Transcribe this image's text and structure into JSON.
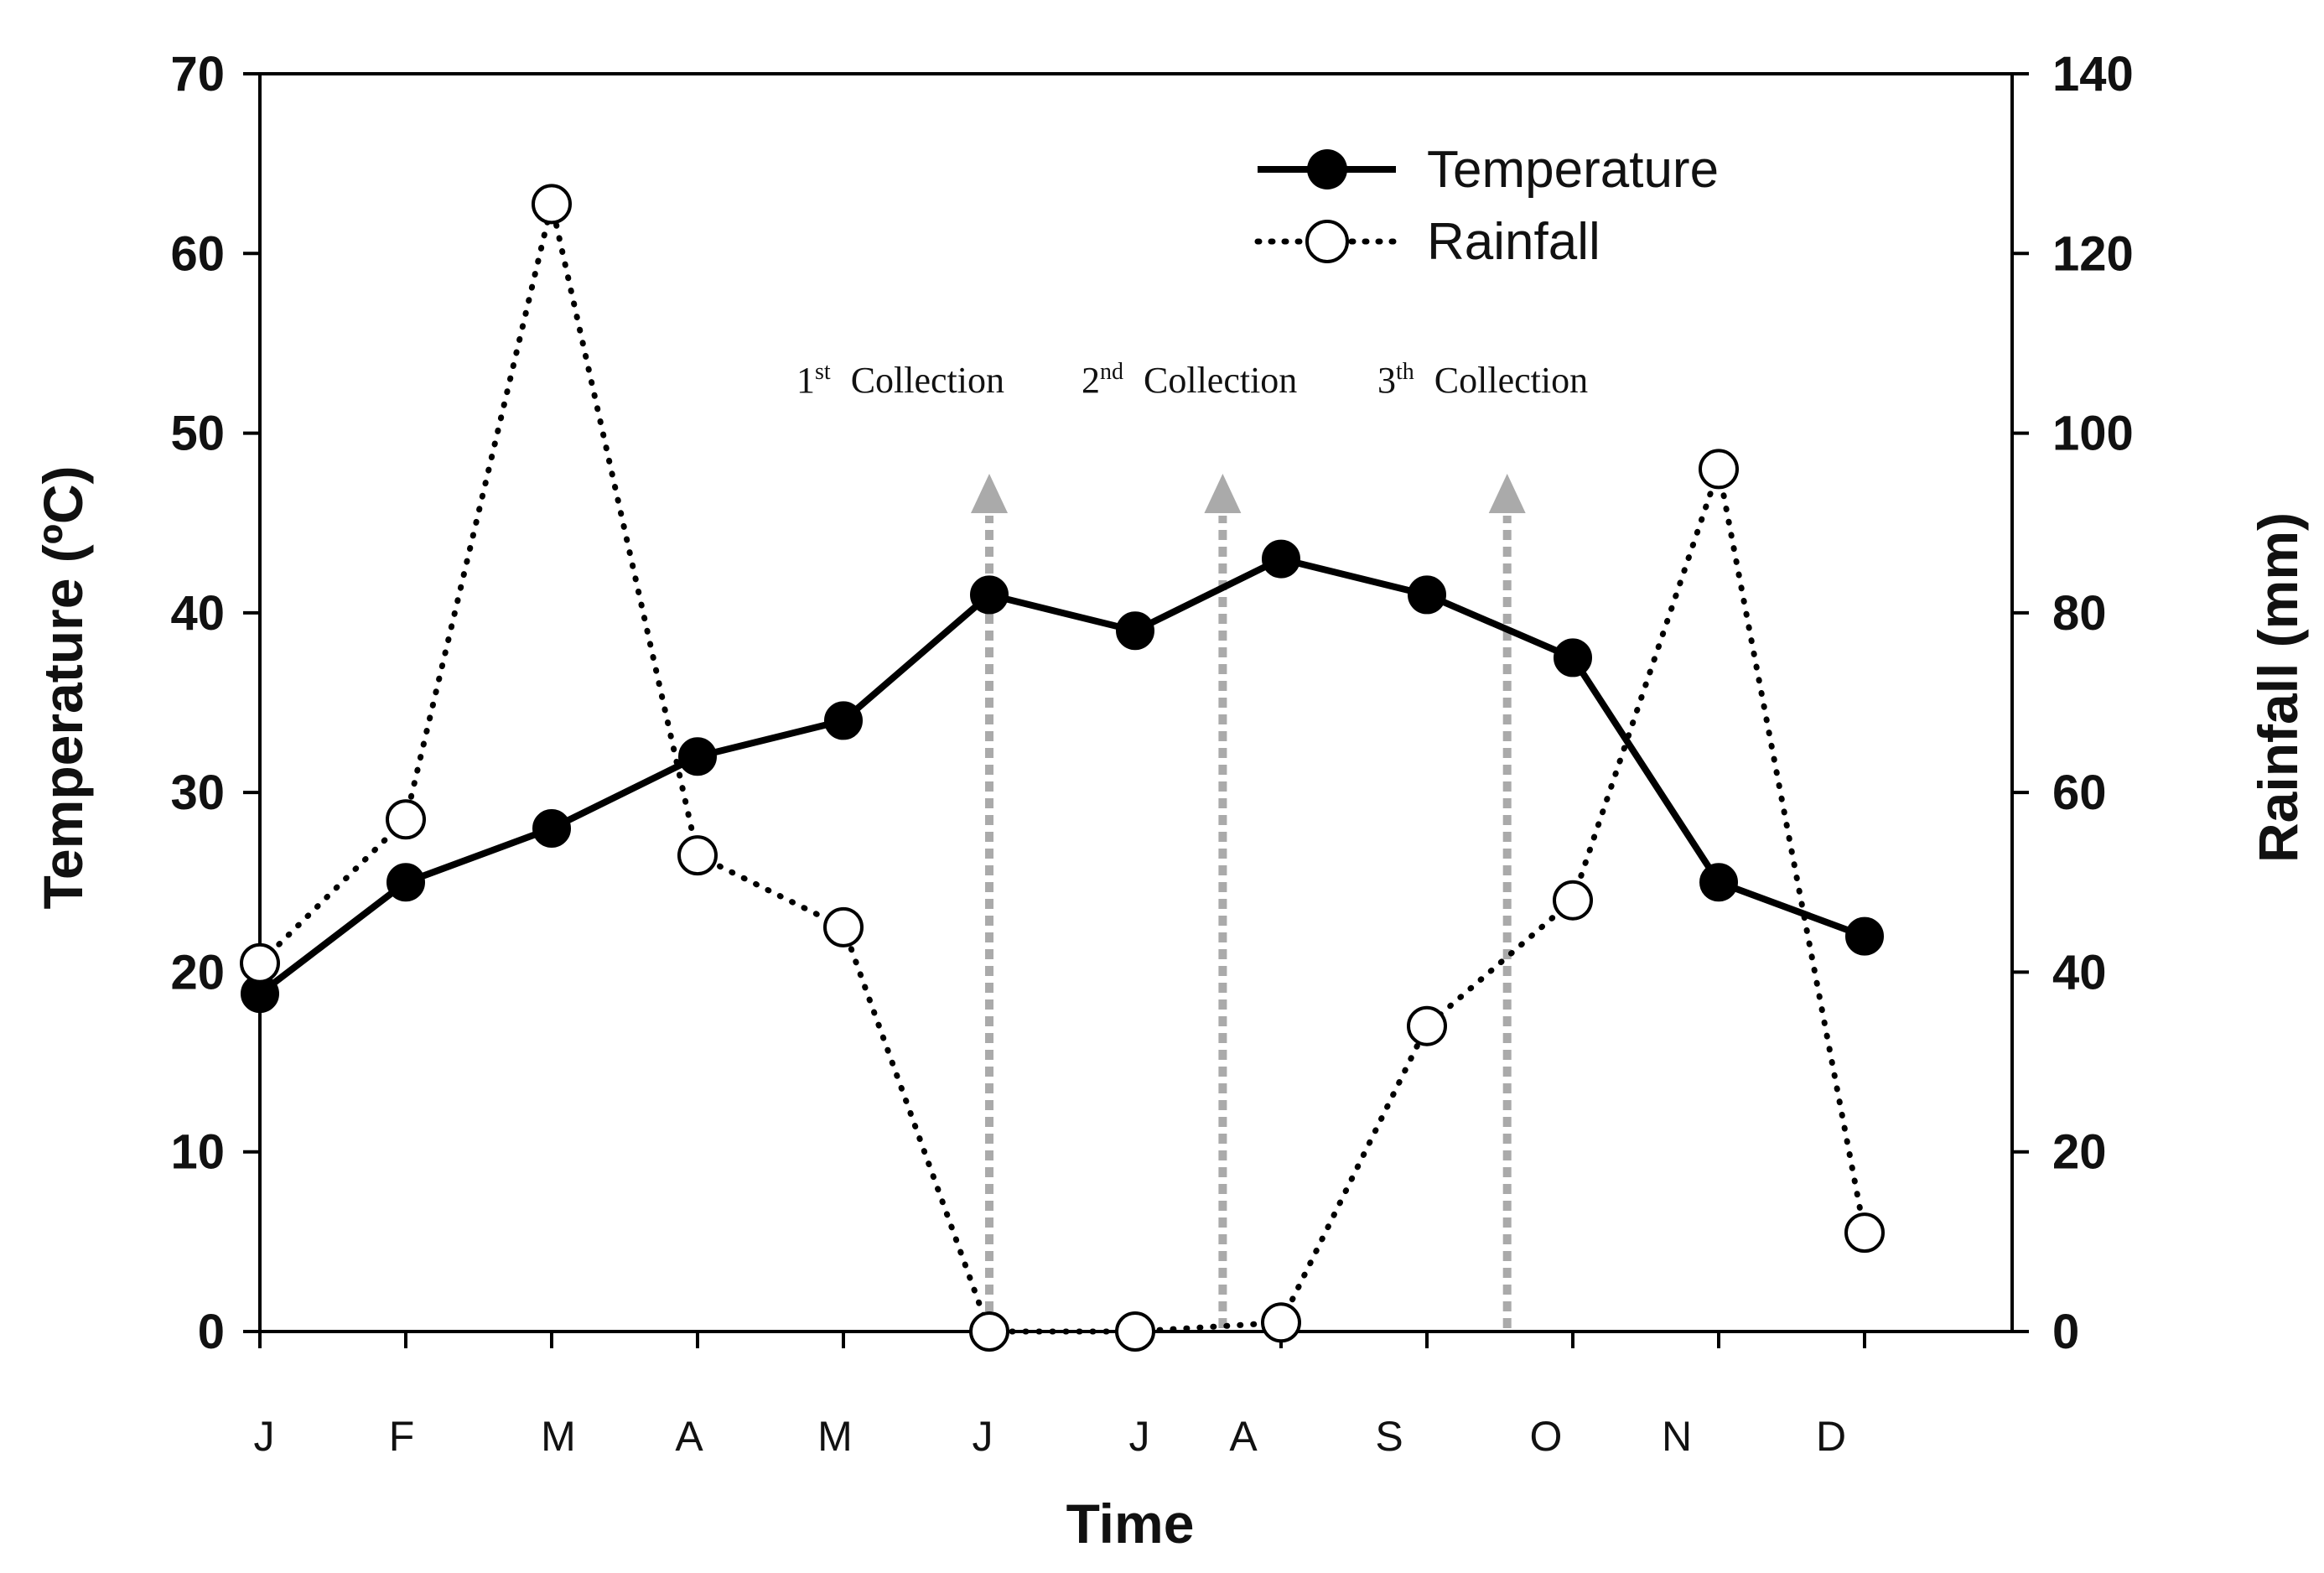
{
  "chart_data": {
    "type": "line",
    "title": "",
    "xlabel": "Time",
    "ylabel": "Temperature (ºC)",
    "y2label": "Rainfall (mm)",
    "categories": [
      "J",
      "F",
      "M",
      "A",
      "M",
      "J",
      "J",
      "A",
      "S",
      "O",
      "N",
      "D"
    ],
    "ylim": [
      0,
      70
    ],
    "y2lim": [
      0,
      140
    ],
    "yticks": [
      0,
      10,
      20,
      30,
      40,
      50,
      60,
      70
    ],
    "y2ticks": [
      0,
      20,
      40,
      60,
      80,
      100,
      120,
      140
    ],
    "series": [
      {
        "name": "Temperature",
        "axis": "left",
        "style": "solid-filled",
        "values": [
          18.8,
          25,
          28,
          32,
          34,
          41,
          39,
          43,
          41,
          37.5,
          25,
          22
        ]
      },
      {
        "name": "Rainfall",
        "axis": "right",
        "style": "dotted-open",
        "values": [
          41,
          57,
          125.5,
          53,
          45,
          0,
          0,
          1,
          34,
          48,
          96,
          11
        ]
      }
    ],
    "legend": {
      "position": "top-right",
      "entries": [
        "Temperature",
        "Rainfall"
      ]
    },
    "annotations": [
      {
        "num": "1",
        "sup": "st",
        "text": "Collection",
        "x_position": 5
      },
      {
        "num": "2",
        "sup": "nd",
        "text": "Collection",
        "x_position": 6.6
      },
      {
        "num": "3",
        "sup": "th",
        "text": "Collection",
        "x_position": 8.55
      }
    ],
    "colors": {
      "line": "#000000",
      "marker_fill": "#000000",
      "open_marker_fill": "#ffffff",
      "arrow": "#aaaaaa"
    },
    "grid": false
  }
}
